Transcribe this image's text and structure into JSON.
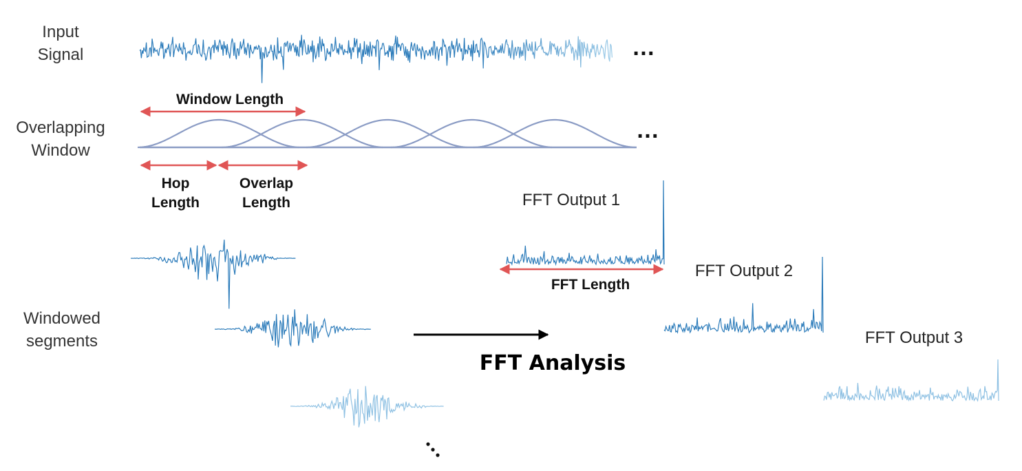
{
  "labels": {
    "input_signal": [
      "Input",
      "Signal"
    ],
    "overlapping_window": [
      "Overlapping",
      "Window"
    ],
    "windowed_segments": [
      "Windowed",
      "segments"
    ],
    "window_length": "Window Length",
    "hop_length": [
      "Hop",
      "Length"
    ],
    "overlap_length": [
      "Overlap",
      "Length"
    ],
    "fft_length": "FFT Length",
    "fft_analysis": "FFT Analysis",
    "fft_output_1": "FFT Output 1",
    "fft_output_2": "FFT Output 2",
    "fft_output_3": "FFT Output 3",
    "ellipsis": "…"
  },
  "colors": {
    "signal_dark": "#2b7bba",
    "signal_light": "#8fc1e3",
    "window_curve": "#8a9bc4",
    "arrow_red": "#e05555",
    "arrow_black": "#000000"
  }
}
